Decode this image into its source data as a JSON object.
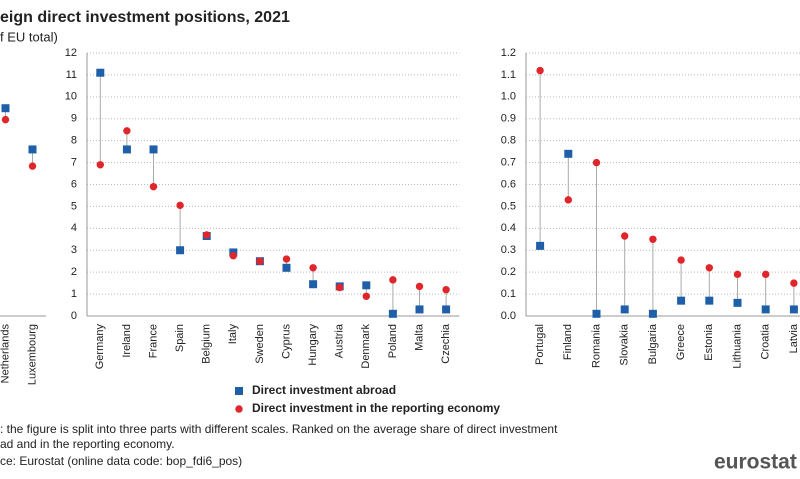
{
  "title": "eign direct investment positions, 2021",
  "subtitle": "f EU total)",
  "notes": [
    ": the figure is split into three parts with different scales. Ranked on the average share of direct investment",
    "ad and in the reporting economy."
  ],
  "source": "ce: Eurostat (online data code: bop_fdi6_pos)",
  "logo": "eurostat",
  "chart_data": [
    {
      "type": "dot",
      "categories": [
        "Netherlands",
        "Luxembourg"
      ],
      "ylim": [
        0,
        30
      ],
      "series": [
        {
          "values": [
            23.7,
            19.0
          ]
        },
        {
          "values": [
            22.4,
            17.1
          ]
        }
      ]
    },
    {
      "type": "dot",
      "categories": [
        "Germany",
        "Ireland",
        "France",
        "Spain",
        "Belgium",
        "Italy",
        "Sweden",
        "Cyprus",
        "Hungary",
        "Austria",
        "Denmark",
        "Poland",
        "Malta",
        "Czechia"
      ],
      "ylim": [
        0,
        12
      ],
      "yticks": [
        0,
        1,
        2,
        3,
        4,
        5,
        6,
        7,
        8,
        9,
        10,
        11,
        12
      ],
      "grid": true,
      "series": [
        {
          "name": "Direct investment abroad",
          "color": "#1f5fa8",
          "values": [
            11.1,
            7.6,
            7.6,
            3.0,
            3.65,
            2.9,
            2.5,
            2.2,
            1.45,
            1.35,
            1.4,
            0.1,
            0.3,
            0.3
          ]
        },
        {
          "name": "Direct investment in the reporting economy",
          "color": "#e0262b",
          "values": [
            6.9,
            8.45,
            5.9,
            5.05,
            3.7,
            2.75,
            2.5,
            2.6,
            2.2,
            1.3,
            0.9,
            1.65,
            1.35,
            1.2
          ]
        }
      ]
    },
    {
      "type": "dot",
      "categories": [
        "Portugal",
        "Finland",
        "Romania",
        "Slovakia",
        "Bulgaria",
        "Greece",
        "Estonia",
        "Lithuania",
        "Croatia",
        "Latvia"
      ],
      "ylim": [
        0,
        1.2
      ],
      "yticks": [
        {
          "value": 0,
          "label": "0.0"
        },
        0.1,
        0.2,
        0.3,
        0.4,
        0.5,
        0.6,
        0.7,
        0.8,
        0.9,
        {
          "value": 1,
          "label": "1.0"
        },
        1.1,
        1.2
      ],
      "grid": true,
      "series": [
        {
          "values": [
            0.32,
            0.74,
            0.01,
            0.03,
            0.01,
            0.07,
            0.07,
            0.06,
            0.03,
            0.03
          ]
        },
        {
          "values": [
            1.12,
            0.53,
            0.7,
            0.365,
            0.35,
            0.255,
            0.22,
            0.19,
            0.19,
            0.15
          ]
        }
      ]
    }
  ]
}
